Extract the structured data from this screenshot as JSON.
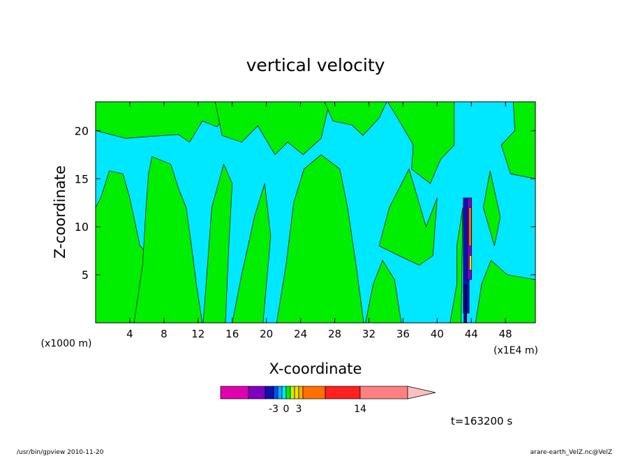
{
  "chart_data": {
    "type": "heatmap",
    "title": "vertical velocity",
    "xlabel": "X-coordinate",
    "ylabel": "Z-coordinate",
    "x_unit_left": "(x1000 m)",
    "x_unit_right": "(x1E4 m)",
    "xlim": [
      0,
      51.5
    ],
    "ylim": [
      0,
      23
    ],
    "x_ticks": [
      4,
      8,
      12,
      16,
      20,
      24,
      28,
      32,
      36,
      40,
      44,
      48
    ],
    "y_ticks": [
      5,
      10,
      15,
      20
    ],
    "time_label": "t=163200 s",
    "colorbar": {
      "tick_labels": [
        {
          "text": "-3",
          "value": -3
        },
        {
          "text": "0",
          "value": 0
        },
        {
          "text": "3",
          "value": 3
        },
        {
          "text": "14",
          "value": 14
        }
      ],
      "bins": [
        {
          "color": "#e000b0",
          "lo": -20,
          "hi": -10
        },
        {
          "color": "#8000c0",
          "lo": -10,
          "hi": -5
        },
        {
          "color": "#1010b0",
          "lo": -5,
          "hi": -3
        },
        {
          "color": "#0050ff",
          "lo": -3,
          "hi": -2
        },
        {
          "color": "#00b0ff",
          "lo": -2,
          "hi": -1
        },
        {
          "color": "#00e8f0",
          "lo": -1,
          "hi": 0
        },
        {
          "color": "#00ee00",
          "lo": 0,
          "hi": 1
        },
        {
          "color": "#c8f000",
          "lo": 1,
          "hi": 2
        },
        {
          "color": "#f0e000",
          "lo": 2,
          "hi": 3
        },
        {
          "color": "#ffb000",
          "lo": 3,
          "hi": 4
        },
        {
          "color": "#ff7000",
          "lo": 4,
          "hi": 7
        },
        {
          "color": "#ff2020",
          "lo": 7,
          "hi": 14
        },
        {
          "color": "#ff8080",
          "lo": 14,
          "hi": 20
        }
      ],
      "extend_color": "#ffc0c0"
    },
    "field_colors": {
      "negative": "#00e8ff",
      "positive": "#00ee00"
    }
  },
  "footer": {
    "left": "/usr/bin/gpview   2010-11-20",
    "right": "arare-earth_VelZ.nc@VelZ"
  }
}
